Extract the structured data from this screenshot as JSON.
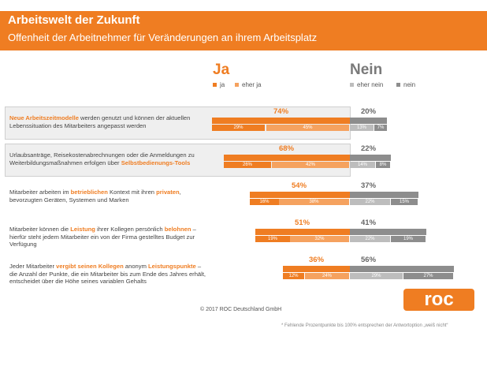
{
  "header": {
    "title": "Arbeitswelt der Zukunft",
    "subtitle": "Offenheit der Arbeitnehmer für Veränderungen an ihrem Arbeitsplatz"
  },
  "columns": {
    "yes_label": "Ja",
    "no_label": "Nein"
  },
  "legend": {
    "ja": "ja",
    "eher_ja": "eher ja",
    "eher_nein": "eher nein",
    "nein": "nein"
  },
  "colors": {
    "accent": "#ef7d22",
    "ja": "#ef7d22",
    "eher_ja": "#f5a25f",
    "eher_nein": "#bdbdbd",
    "nein": "#8d8d8d"
  },
  "chart_data": {
    "type": "bar",
    "orientation": "horizontal-diverging",
    "rows": [
      {
        "label_parts": [
          {
            "text": "Neue Arbeitszeitmodelle",
            "bold": true
          },
          {
            "text": " werden genutzt und können der aktuellen Lebenssituation des Mitarbeiters angepasst werden",
            "bold": false
          }
        ],
        "highlight": true,
        "ja_total": "74%",
        "nein_total": "20%",
        "ja": 29,
        "eher_ja": 45,
        "eher_nein": 13,
        "nein": 7,
        "ja_label": "29%",
        "eher_ja_label": "45%",
        "eher_nein_label": "13%",
        "nein_label": "7%"
      },
      {
        "label_parts": [
          {
            "text": "Urlaubsanträge, Reisekostenabrechnungen oder die Anmeldungen zu Weiterbildungsmaßnahmen erfolgen über ",
            "bold": false
          },
          {
            "text": "Selbstbedienungs-Tools",
            "bold": true
          }
        ],
        "highlight": true,
        "ja_total": "68%",
        "nein_total": "22%",
        "ja": 26,
        "eher_ja": 42,
        "eher_nein": 14,
        "nein": 8,
        "ja_label": "26%",
        "eher_ja_label": "42%",
        "eher_nein_label": "14%",
        "nein_label": "8%"
      },
      {
        "label_parts": [
          {
            "text": "Mitarbeiter arbeiten im ",
            "bold": false
          },
          {
            "text": "betrieblichen",
            "bold": true
          },
          {
            "text": " Kontext mit ihren ",
            "bold": false
          },
          {
            "text": "privaten",
            "bold": true
          },
          {
            "text": ", bevorzugten Geräten, Systemen und Marken",
            "bold": false
          }
        ],
        "highlight": false,
        "ja_total": "54%",
        "nein_total": "37%",
        "ja": 16,
        "eher_ja": 38,
        "eher_nein": 22,
        "nein": 15,
        "ja_label": "16%",
        "eher_ja_label": "38%",
        "eher_nein_label": "22%",
        "nein_label": "15%"
      },
      {
        "label_parts": [
          {
            "text": "Mitarbeiter können die ",
            "bold": false
          },
          {
            "text": "Leistung",
            "bold": true
          },
          {
            "text": " ihrer Kollegen persönlich ",
            "bold": false
          },
          {
            "text": "belohnen",
            "bold": true
          },
          {
            "text": " – hierfür steht jedem Mitarbeiter ein von der Firma gestelltes Budget zur Verfügung",
            "bold": false
          }
        ],
        "highlight": false,
        "ja_total": "51%",
        "nein_total": "41%",
        "ja": 19,
        "eher_ja": 32,
        "eher_nein": 22,
        "nein": 19,
        "ja_label": "19%",
        "eher_ja_label": "32%",
        "eher_nein_label": "22%",
        "nein_label": "19%"
      },
      {
        "label_parts": [
          {
            "text": "Jeder Mitarbeiter ",
            "bold": false
          },
          {
            "text": "vergibt seinen Kollegen",
            "bold": true
          },
          {
            "text": " anonym ",
            "bold": false
          },
          {
            "text": "Leistungspunkte",
            "bold": true
          },
          {
            "text": " – die Anzahl der Punkte, die ein Mitarbeiter bis zum Ende des Jahres erhält, entscheidet über die Höhe seines variablen Gehalts",
            "bold": false
          }
        ],
        "highlight": false,
        "ja_total": "36%",
        "nein_total": "56%",
        "ja": 12,
        "eher_ja": 24,
        "eher_nein": 29,
        "nein": 27,
        "ja_label": "12%",
        "eher_ja_label": "24%",
        "eher_nein_label": "29%",
        "nein_label": "27%"
      }
    ]
  },
  "footer": {
    "copyright": "© 2017 ROC Deutschland GmbH",
    "footnote": "* Fehlende Prozentpunkte bis 100% entsprechen der Antwortoption „weiß nicht“",
    "logo_text": "roc"
  }
}
